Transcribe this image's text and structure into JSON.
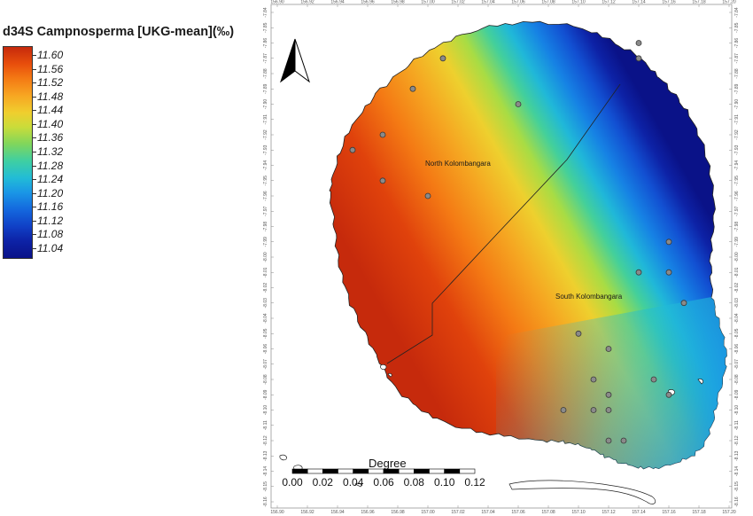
{
  "legend": {
    "title": "d34S Campnosperma [UKG-mean](‰)",
    "labels": [
      "11.60",
      "11.56",
      "11.52",
      "11.48",
      "11.44",
      "11.40",
      "11.36",
      "11.32",
      "11.28",
      "11.24",
      "11.20",
      "11.16",
      "11.12",
      "11.08",
      "11.04"
    ],
    "colors": [
      "#c62a0c",
      "#e84e0c",
      "#f47a14",
      "#f7a622",
      "#f0ce2e",
      "#c9dc3a",
      "#7fd65c",
      "#3fcfa2",
      "#22bcd6",
      "#1a96e6",
      "#1468de",
      "#1040c6",
      "#0d22a6",
      "#0a1288"
    ]
  },
  "map": {
    "region_labels": [
      "North Kolombangara",
      "South Kolombangara"
    ],
    "top_ticks": [
      "156.90",
      "156.92",
      "156.94",
      "156.96",
      "156.98",
      "157.00",
      "157.02",
      "157.04",
      "157.06",
      "157.08",
      "157.10",
      "157.12",
      "157.14",
      "157.16",
      "157.18",
      "157.20"
    ],
    "bottom_ticks": [
      "156.90",
      "156.92",
      "156.94",
      "156.96",
      "156.98",
      "157.00",
      "157.02",
      "157.04",
      "157.06",
      "157.08",
      "157.10",
      "157.12",
      "157.14",
      "157.16",
      "157.18",
      "157.20"
    ],
    "left_ticks": [
      "-7.84",
      "-7.85",
      "-7.86",
      "-7.87",
      "-7.88",
      "-7.89",
      "-7.90",
      "-7.91",
      "-7.92",
      "-7.93",
      "-7.94",
      "-7.95",
      "-7.96",
      "-7.97",
      "-7.98",
      "-7.99",
      "-8.00",
      "-8.01",
      "-8.02",
      "-8.03",
      "-8.04",
      "-8.05",
      "-8.06",
      "-8.07",
      "-8.08",
      "-8.09",
      "-8.10",
      "-8.11",
      "-8.12",
      "-8.13",
      "-8.14",
      "-8.15",
      "-8.16"
    ],
    "right_ticks": [
      "-7.84",
      "-7.85",
      "-7.86",
      "-7.87",
      "-7.88",
      "-7.89",
      "-7.90",
      "-7.91",
      "-7.92",
      "-7.93",
      "-7.94",
      "-7.95",
      "-7.96",
      "-7.97",
      "-7.98",
      "-7.99",
      "-8.00",
      "-8.01",
      "-8.02",
      "-8.03",
      "-8.04",
      "-8.05",
      "-8.06",
      "-8.07",
      "-8.08",
      "-8.09",
      "-8.10",
      "-8.11",
      "-8.12",
      "-8.13",
      "-8.14",
      "-8.15",
      "-8.16"
    ]
  },
  "scale_bar": {
    "title": "Degree",
    "labels": [
      "0.00",
      "0.02",
      "0.04",
      "0.06",
      "0.08",
      "0.10",
      "0.12"
    ]
  },
  "sample_points": [
    [
      157.01,
      -7.87
    ],
    [
      157.14,
      -7.86
    ],
    [
      157.14,
      -7.87
    ],
    [
      156.99,
      -7.89
    ],
    [
      157.06,
      -7.9
    ],
    [
      156.97,
      -7.92
    ],
    [
      156.95,
      -7.93
    ],
    [
      156.97,
      -7.95
    ],
    [
      157.0,
      -7.96
    ],
    [
      157.16,
      -7.99
    ],
    [
      157.14,
      -8.01
    ],
    [
      157.16,
      -8.01
    ],
    [
      157.17,
      -8.03
    ],
    [
      157.1,
      -8.05
    ],
    [
      157.12,
      -8.06
    ],
    [
      157.11,
      -8.08
    ],
    [
      157.12,
      -8.09
    ],
    [
      157.15,
      -8.08
    ],
    [
      157.16,
      -8.09
    ],
    [
      157.09,
      -8.1
    ],
    [
      157.11,
      -8.1
    ],
    [
      157.12,
      -8.1
    ],
    [
      157.12,
      -8.12
    ],
    [
      157.13,
      -8.12
    ]
  ]
}
